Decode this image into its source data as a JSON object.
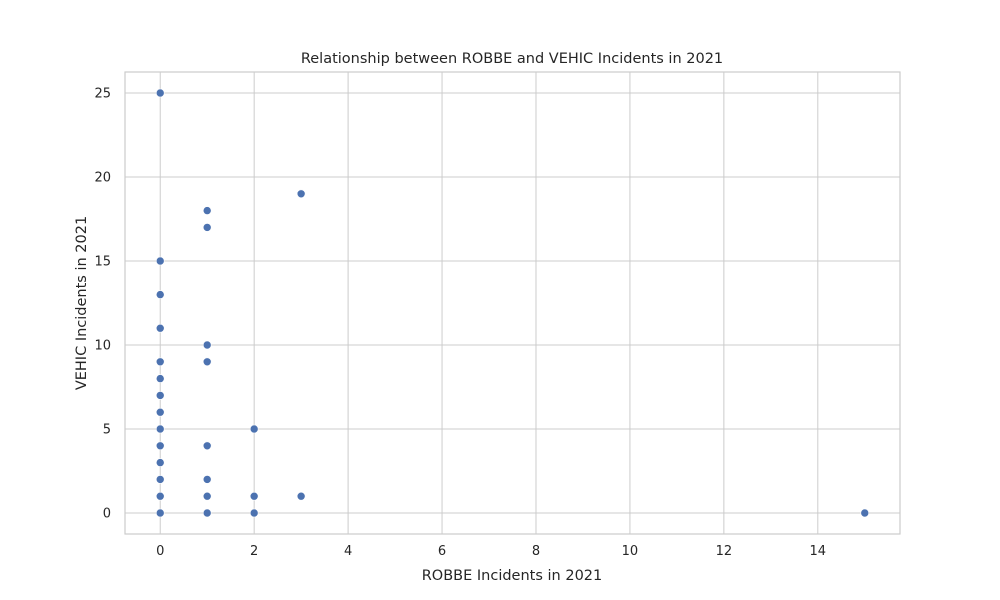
{
  "chart_data": {
    "type": "scatter",
    "title": "Relationship between ROBBE and VEHIC Incidents in 2021",
    "xlabel": "ROBBE Incidents in 2021",
    "ylabel": "VEHIC Incidents in 2021",
    "xlim": [
      -0.75,
      15.75
    ],
    "ylim": [
      -1.25,
      26.25
    ],
    "xticks": [
      0,
      2,
      4,
      6,
      8,
      10,
      12,
      14
    ],
    "yticks": [
      0,
      5,
      10,
      15,
      20,
      25
    ],
    "grid": true,
    "point_color": "#4c72b0",
    "points": [
      {
        "x": 0,
        "y": 25
      },
      {
        "x": 0,
        "y": 15
      },
      {
        "x": 0,
        "y": 13
      },
      {
        "x": 0,
        "y": 11
      },
      {
        "x": 0,
        "y": 9
      },
      {
        "x": 0,
        "y": 8
      },
      {
        "x": 0,
        "y": 7
      },
      {
        "x": 0,
        "y": 6
      },
      {
        "x": 0,
        "y": 5
      },
      {
        "x": 0,
        "y": 4
      },
      {
        "x": 0,
        "y": 3
      },
      {
        "x": 0,
        "y": 2
      },
      {
        "x": 0,
        "y": 1
      },
      {
        "x": 0,
        "y": 0
      },
      {
        "x": 1,
        "y": 18
      },
      {
        "x": 1,
        "y": 17
      },
      {
        "x": 1,
        "y": 10
      },
      {
        "x": 1,
        "y": 9
      },
      {
        "x": 1,
        "y": 4
      },
      {
        "x": 1,
        "y": 2
      },
      {
        "x": 1,
        "y": 1
      },
      {
        "x": 1,
        "y": 0
      },
      {
        "x": 2,
        "y": 5
      },
      {
        "x": 2,
        "y": 1
      },
      {
        "x": 2,
        "y": 0
      },
      {
        "x": 3,
        "y": 19
      },
      {
        "x": 3,
        "y": 1
      },
      {
        "x": 15,
        "y": 0
      }
    ]
  }
}
